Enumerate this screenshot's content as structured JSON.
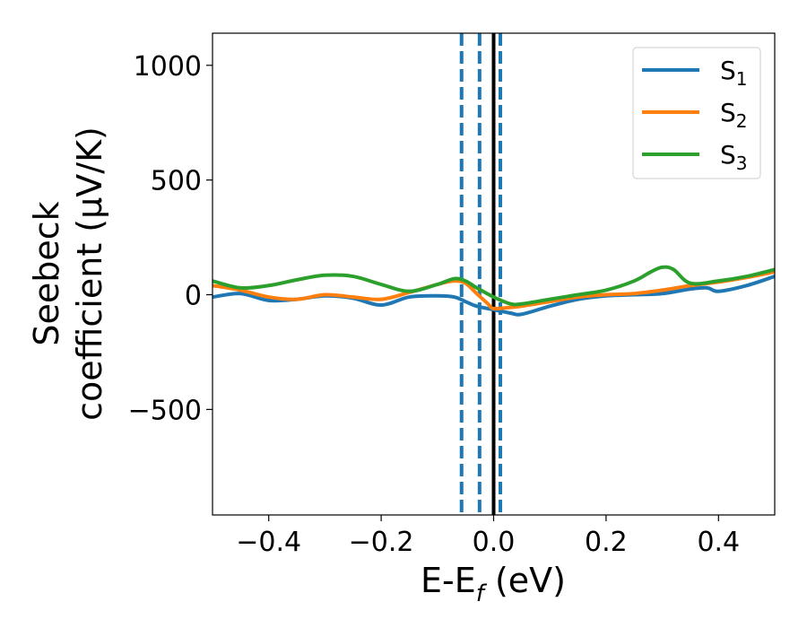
{
  "chart_data": {
    "type": "line",
    "xlabel": "E-E",
    "xlabel_sub": "f",
    "xlabel_unit": " (eV)",
    "ylabel_line1": "Seebeck",
    "ylabel_line2": "coefficient  (μV/K)",
    "xlim": [
      -0.5,
      0.5
    ],
    "ylim": [
      -960,
      1140
    ],
    "xticks": [
      -0.4,
      -0.2,
      0.0,
      0.2,
      0.4
    ],
    "xtick_labels": [
      "−0.4",
      "−0.2",
      "0.0",
      "0.2",
      "0.4"
    ],
    "yticks": [
      -500,
      0,
      500,
      1000
    ],
    "ytick_labels": [
      "−500",
      "0",
      "500",
      "1000"
    ],
    "grid": false,
    "legend_position": "top-right",
    "vlines": [
      {
        "x": -0.057,
        "style": "dashed",
        "color": "#1f77b4"
      },
      {
        "x": -0.025,
        "style": "dashed",
        "color": "#1f77b4"
      },
      {
        "x": 0.012,
        "style": "dashed",
        "color": "#1f77b4"
      },
      {
        "x": 0.0,
        "style": "solid",
        "color": "#000000"
      }
    ],
    "series": [
      {
        "name": "S",
        "name_sub": "1",
        "color": "#1f77b4",
        "x": [
          -0.5,
          -0.45,
          -0.4,
          -0.35,
          -0.3,
          -0.25,
          -0.2,
          -0.15,
          -0.1,
          -0.07,
          -0.05,
          -0.03,
          0.0,
          0.03,
          0.05,
          0.1,
          0.15,
          0.2,
          0.25,
          0.3,
          0.35,
          0.38,
          0.4,
          0.45,
          0.5
        ],
        "y": [
          -10,
          5,
          -25,
          -20,
          -5,
          -15,
          -45,
          -10,
          -5,
          -10,
          -30,
          -50,
          -65,
          -80,
          -85,
          -50,
          -20,
          -5,
          0,
          5,
          25,
          30,
          15,
          40,
          80
        ]
      },
      {
        "name": "S",
        "name_sub": "2",
        "color": "#ff7f0e",
        "x": [
          -0.5,
          -0.45,
          -0.4,
          -0.35,
          -0.3,
          -0.25,
          -0.2,
          -0.15,
          -0.1,
          -0.07,
          -0.05,
          -0.03,
          -0.01,
          0.0,
          0.03,
          0.05,
          0.1,
          0.15,
          0.2,
          0.25,
          0.3,
          0.35,
          0.4,
          0.45,
          0.5
        ],
        "y": [
          40,
          20,
          -10,
          -20,
          0,
          -10,
          -20,
          10,
          45,
          60,
          50,
          5,
          -40,
          -60,
          -55,
          -50,
          -30,
          -10,
          0,
          5,
          20,
          40,
          55,
          75,
          100
        ]
      },
      {
        "name": "S",
        "name_sub": "3",
        "color": "#2ca02c",
        "x": [
          -0.5,
          -0.45,
          -0.4,
          -0.35,
          -0.3,
          -0.25,
          -0.2,
          -0.15,
          -0.1,
          -0.07,
          -0.05,
          -0.03,
          0.0,
          0.03,
          0.05,
          0.1,
          0.15,
          0.2,
          0.25,
          0.28,
          0.3,
          0.32,
          0.35,
          0.4,
          0.45,
          0.5
        ],
        "y": [
          60,
          30,
          40,
          65,
          85,
          80,
          45,
          15,
          45,
          70,
          60,
          30,
          -10,
          -40,
          -40,
          -20,
          0,
          20,
          60,
          100,
          120,
          110,
          50,
          60,
          80,
          110
        ]
      }
    ]
  }
}
